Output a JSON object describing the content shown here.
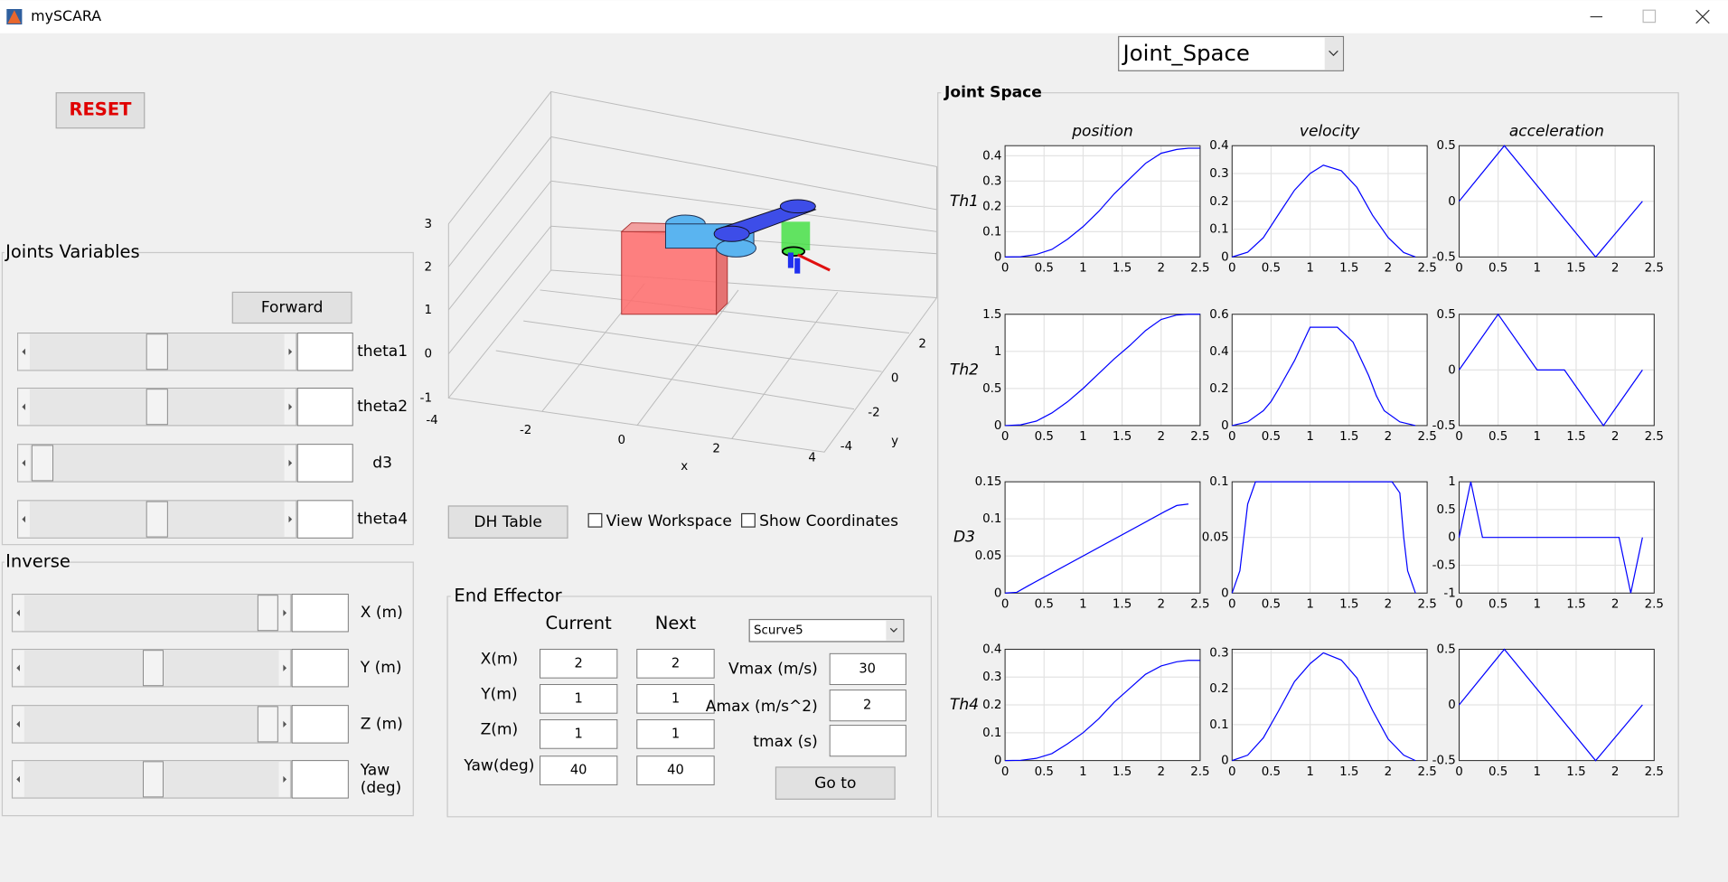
{
  "window": {
    "title": "mySCARA"
  },
  "view_select": "Joint_Space",
  "reset": "RESET",
  "joints": {
    "title": "Joints Variables",
    "button": "Forward",
    "labels": [
      "theta1",
      "theta2",
      "d3",
      "theta4"
    ]
  },
  "inverse": {
    "title": "Inverse",
    "labels": [
      "X (m)",
      "Y (m)",
      "Z (m)",
      [
        "Yaw",
        "(deg)"
      ]
    ]
  },
  "plot3d": {
    "zticks": [
      3,
      2,
      1,
      0,
      -1
    ],
    "xticks": [
      -4,
      -2,
      0,
      2,
      4
    ],
    "yticks": [
      2,
      0,
      -2,
      -4
    ],
    "xlabel": "x",
    "ylabel": "y"
  },
  "controls": {
    "dh_button": "DH Table",
    "checkboxes": [
      "View Workspace",
      "Show Coordinates"
    ]
  },
  "end_effector": {
    "title": "End Effector",
    "headers": [
      "Current",
      "Next"
    ],
    "rows": [
      {
        "label": "X(m)",
        "current": 2,
        "next": 2
      },
      {
        "label": "Y(m)",
        "current": 1,
        "next": 1
      },
      {
        "label": "Z(m)",
        "current": 1,
        "next": 1
      },
      {
        "label": "Yaw(deg)",
        "current": 40,
        "next": 40
      }
    ],
    "profile": "Scurve5",
    "params": [
      {
        "label": "Vmax (m/s)",
        "value": 30
      },
      {
        "label": "Amax (m/s^2)",
        "value": 2
      },
      {
        "label": "tmax (s)"
      }
    ],
    "button": "Go to"
  },
  "joint_space": {
    "title": "Joint Space",
    "columns": [
      "position",
      "velocity",
      "acceleration"
    ],
    "rows": [
      "Th1",
      "Th2",
      "D3",
      "Th4"
    ]
  },
  "chart_data": [
    {
      "type": "line",
      "color": "#0000ff",
      "grid": true,
      "xlim": [
        0,
        2.5
      ],
      "xticks": [
        0,
        0.5,
        1,
        1.5,
        2,
        2.5
      ],
      "ylim": [
        0,
        0.44
      ],
      "yticks": [
        0,
        0.1,
        0.2,
        0.3,
        0.4
      ],
      "x": [
        0,
        0.2,
        0.4,
        0.6,
        0.8,
        1.0,
        1.2,
        1.4,
        1.6,
        1.8,
        2.0,
        2.2,
        2.35,
        2.5
      ],
      "values": [
        0,
        0.001,
        0.01,
        0.03,
        0.07,
        0.12,
        0.18,
        0.25,
        0.31,
        0.37,
        0.41,
        0.425,
        0.43,
        0.43
      ]
    },
    {
      "type": "line",
      "color": "#0000ff",
      "grid": true,
      "xlim": [
        0,
        2.5
      ],
      "xticks": [
        0,
        0.5,
        1,
        1.5,
        2,
        2.5
      ],
      "ylim": [
        0,
        0.4
      ],
      "yticks": [
        0,
        0.1,
        0.2,
        0.3,
        0.4
      ],
      "x": [
        0,
        0.2,
        0.4,
        0.6,
        0.8,
        1.0,
        1.17,
        1.4,
        1.6,
        1.8,
        2.0,
        2.2,
        2.35
      ],
      "values": [
        0,
        0.017,
        0.069,
        0.155,
        0.24,
        0.3,
        0.33,
        0.31,
        0.25,
        0.15,
        0.07,
        0.016,
        0
      ]
    },
    {
      "type": "line",
      "color": "#0000ff",
      "grid": true,
      "xlim": [
        0,
        2.5
      ],
      "xticks": [
        0,
        0.5,
        1,
        1.5,
        2,
        2.5
      ],
      "ylim": [
        -0.5,
        0.5
      ],
      "yticks": [
        -0.5,
        0,
        0.5
      ],
      "x": [
        0,
        0.58,
        1.75,
        2.35
      ],
      "values": [
        0,
        0.5,
        -0.5,
        0
      ]
    },
    {
      "type": "line",
      "color": "#0000ff",
      "grid": true,
      "xlim": [
        0,
        2.5
      ],
      "xticks": [
        0,
        0.5,
        1,
        1.5,
        2,
        2.5
      ],
      "ylim": [
        0,
        1.5
      ],
      "yticks": [
        0,
        0.5,
        1,
        1.5
      ],
      "x": [
        0,
        0.2,
        0.4,
        0.6,
        0.8,
        1.0,
        1.2,
        1.4,
        1.6,
        1.8,
        2.0,
        2.2,
        2.35,
        2.5
      ],
      "values": [
        0,
        0.01,
        0.06,
        0.17,
        0.32,
        0.5,
        0.7,
        0.9,
        1.08,
        1.28,
        1.43,
        1.49,
        1.5,
        1.5
      ]
    },
    {
      "type": "line",
      "color": "#0000ff",
      "grid": true,
      "xlim": [
        0,
        2.5
      ],
      "xticks": [
        0,
        0.5,
        1,
        1.5,
        2,
        2.5
      ],
      "ylim": [
        0,
        0.6
      ],
      "yticks": [
        0,
        0.2,
        0.4,
        0.6
      ],
      "x": [
        0,
        0.2,
        0.4,
        0.5,
        0.6,
        0.8,
        1.0,
        1.35,
        1.55,
        1.75,
        1.85,
        1.95,
        2.15,
        2.35
      ],
      "values": [
        0,
        0.02,
        0.08,
        0.13,
        0.2,
        0.35,
        0.53,
        0.53,
        0.45,
        0.27,
        0.16,
        0.08,
        0.02,
        0
      ]
    },
    {
      "type": "line",
      "color": "#0000ff",
      "grid": true,
      "xlim": [
        0,
        2.5
      ],
      "xticks": [
        0,
        0.5,
        1,
        1.5,
        2,
        2.5
      ],
      "ylim": [
        -0.5,
        0.5
      ],
      "yticks": [
        -0.5,
        0,
        0.5
      ],
      "x": [
        0,
        0.5,
        1.0,
        1.35,
        1.85,
        2.35
      ],
      "values": [
        0,
        0.5,
        0,
        0,
        -0.5,
        0
      ]
    },
    {
      "type": "line",
      "color": "#0000ff",
      "grid": true,
      "xlim": [
        0,
        2.5
      ],
      "xticks": [
        0,
        0.5,
        1,
        1.5,
        2,
        2.5
      ],
      "ylim": [
        0,
        0.15
      ],
      "yticks": [
        0,
        0.05,
        0.1,
        0.15
      ],
      "x": [
        0,
        0.15,
        0.3,
        2.05,
        2.2,
        2.35
      ],
      "values": [
        0,
        0.001,
        0.01,
        0.11,
        0.118,
        0.12
      ]
    },
    {
      "type": "line",
      "color": "#0000ff",
      "grid": true,
      "xlim": [
        0,
        2.5
      ],
      "xticks": [
        0,
        0.5,
        1,
        1.5,
        2,
        2.5
      ],
      "ylim": [
        0,
        0.1
      ],
      "yticks": [
        0,
        0.05,
        0.1
      ],
      "x": [
        0,
        0.1,
        0.15,
        0.2,
        0.3,
        2.05,
        2.15,
        2.2,
        2.25,
        2.35
      ],
      "values": [
        0,
        0.02,
        0.05,
        0.08,
        0.1,
        0.1,
        0.09,
        0.05,
        0.02,
        0
      ]
    },
    {
      "type": "line",
      "color": "#0000ff",
      "grid": true,
      "xlim": [
        0,
        2.5
      ],
      "xticks": [
        0,
        0.5,
        1,
        1.5,
        2,
        2.5
      ],
      "ylim": [
        -1,
        1
      ],
      "yticks": [
        -1,
        -0.5,
        0,
        0.5,
        1
      ],
      "x": [
        0,
        0.15,
        0.3,
        2.05,
        2.2,
        2.35
      ],
      "values": [
        0,
        1,
        0,
        0,
        -1,
        0
      ]
    },
    {
      "type": "line",
      "color": "#0000ff",
      "grid": true,
      "xlim": [
        0,
        2.5
      ],
      "xticks": [
        0,
        0.5,
        1,
        1.5,
        2,
        2.5
      ],
      "ylim": [
        0,
        0.4
      ],
      "yticks": [
        0,
        0.1,
        0.2,
        0.3,
        0.4
      ],
      "x": [
        0,
        0.2,
        0.4,
        0.6,
        0.8,
        1.0,
        1.2,
        1.4,
        1.6,
        1.8,
        2.0,
        2.2,
        2.35,
        2.5
      ],
      "values": [
        0,
        0.001,
        0.008,
        0.025,
        0.06,
        0.1,
        0.15,
        0.21,
        0.26,
        0.31,
        0.34,
        0.355,
        0.36,
        0.36
      ]
    },
    {
      "type": "line",
      "color": "#0000ff",
      "grid": true,
      "xlim": [
        0,
        2.5
      ],
      "xticks": [
        0,
        0.5,
        1,
        1.5,
        2,
        2.5
      ],
      "ylim": [
        0,
        0.31
      ],
      "yticks": [
        0,
        0.1,
        0.2,
        0.3
      ],
      "x": [
        0,
        0.2,
        0.4,
        0.6,
        0.8,
        1.0,
        1.17,
        1.4,
        1.6,
        1.8,
        2.0,
        2.2,
        2.35
      ],
      "values": [
        0,
        0.015,
        0.063,
        0.14,
        0.22,
        0.27,
        0.3,
        0.28,
        0.23,
        0.14,
        0.06,
        0.015,
        0
      ]
    },
    {
      "type": "line",
      "color": "#0000ff",
      "grid": true,
      "xlim": [
        0,
        2.5
      ],
      "xticks": [
        0,
        0.5,
        1,
        1.5,
        2,
        2.5
      ],
      "ylim": [
        -0.5,
        0.5
      ],
      "yticks": [
        -0.5,
        0,
        0.5
      ],
      "x": [
        0,
        0.58,
        1.75,
        2.35
      ],
      "values": [
        0,
        0.5,
        -0.5,
        0
      ]
    }
  ]
}
